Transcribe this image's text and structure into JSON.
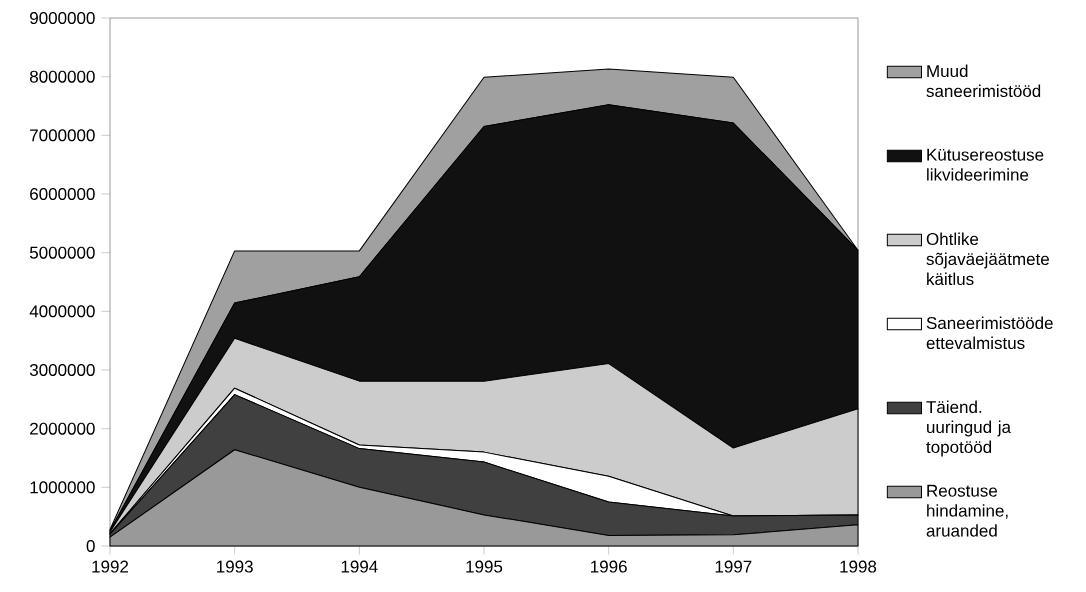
{
  "chart_data": {
    "type": "area",
    "stacked": true,
    "x": [
      1992,
      1993,
      1994,
      1995,
      1996,
      1997,
      1998
    ],
    "xlim": [
      1992,
      1998
    ],
    "xticks": [
      1992,
      1993,
      1994,
      1995,
      1996,
      1997,
      1998
    ],
    "ylim": [
      0,
      9000000
    ],
    "yticks": [
      0,
      1000000,
      2000000,
      3000000,
      4000000,
      5000000,
      6000000,
      7000000,
      8000000,
      9000000
    ],
    "legend": "right",
    "grid": false,
    "series": [
      {
        "name": "Reostuse hindamine, aruanded",
        "color": "#999999",
        "values": [
          150000,
          1640000,
          1000000,
          530000,
          180000,
          190000,
          360000
        ]
      },
      {
        "name": "Täiend. uuringud ja topotööd",
        "color": "#404040",
        "values": [
          50000,
          940000,
          660000,
          900000,
          570000,
          320000,
          170000
        ]
      },
      {
        "name": "Saneerimistööde ettevalmistus",
        "color": "#ffffff",
        "values": [
          10000,
          110000,
          60000,
          170000,
          440000,
          0,
          0
        ]
      },
      {
        "name": "Ohtlike sõjaväejäätmete käitlus",
        "color": "#cccccc",
        "values": [
          30000,
          850000,
          1090000,
          1210000,
          1920000,
          1160000,
          1810000
        ]
      },
      {
        "name": "Kütusereostuse likvideerimine",
        "color": "#111111",
        "values": [
          20000,
          600000,
          1780000,
          4340000,
          4410000,
          5540000,
          2700000
        ]
      },
      {
        "name": "Muud saneerimistööd",
        "color": "#a0a0a0",
        "values": [
          20000,
          890000,
          440000,
          840000,
          610000,
          780000,
          0
        ]
      }
    ]
  }
}
